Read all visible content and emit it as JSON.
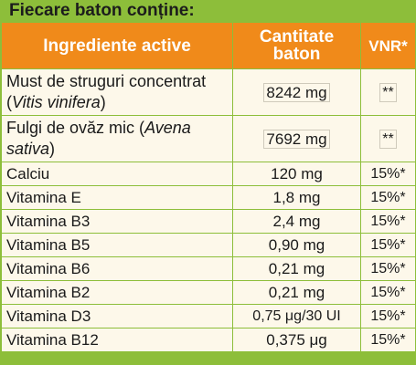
{
  "title": "Fiecare baton conține:",
  "headers": {
    "ingredient": "Ingrediente active",
    "quantity": "Cantitate baton",
    "vnr": "VNR*"
  },
  "rows": [
    {
      "ingredient": "Must de struguri concentrat (",
      "latin": "Vitis vinifera",
      "after": ")",
      "quantity": "8242 mg",
      "vnr": "**"
    },
    {
      "ingredient": "Fulgi de ovăz mic (",
      "latin": "Avena sativa",
      "after": ")",
      "quantity": "7692 mg",
      "vnr": "**"
    },
    {
      "ingredient": "Calciu",
      "quantity": "120 mg",
      "vnr": "15%*"
    },
    {
      "ingredient": "Vitamina E",
      "quantity": "1,8 mg",
      "vnr": "15%*"
    },
    {
      "ingredient": "Vitamina B3",
      "quantity": "2,4 mg",
      "vnr": "15%*"
    },
    {
      "ingredient": "Vitamina B5",
      "quantity": "0,90 mg",
      "vnr": "15%*"
    },
    {
      "ingredient": "Vitamina B6",
      "quantity": "0,21 mg",
      "vnr": "15%*"
    },
    {
      "ingredient": "Vitamina B2",
      "quantity": "0,21 mg",
      "vnr": "15%*"
    },
    {
      "ingredient": "Vitamina D3",
      "quantity": "0,75 μg/30 UI",
      "vnr": "15%*"
    },
    {
      "ingredient": "Vitamina B12",
      "quantity": "0,375 μg",
      "vnr": "15%*"
    }
  ],
  "colors": {
    "background": "#8dbe3a",
    "header": "#f08a1a",
    "cell": "#fdf8ea"
  }
}
